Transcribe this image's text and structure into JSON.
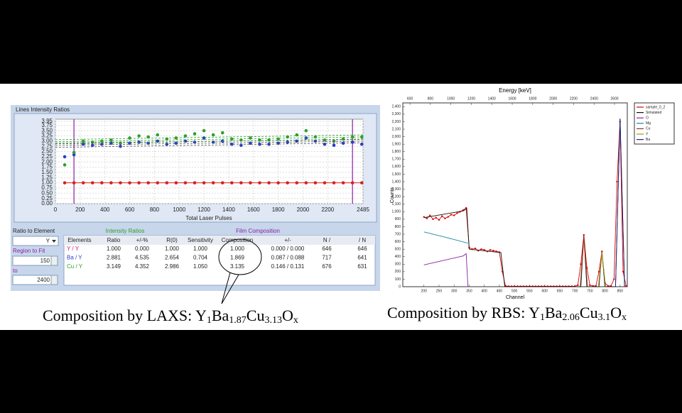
{
  "chart_data": [
    {
      "type": "scatter",
      "title": "Lines Intensity Ratios",
      "xlabel": "Total Laser Pulses",
      "xlim": [
        0,
        2485
      ],
      "ylim": [
        0,
        4.05
      ],
      "xticks": [
        0,
        200,
        400,
        600,
        800,
        1000,
        1200,
        1400,
        1600,
        1800,
        2000,
        2200,
        2485
      ],
      "yticks": [
        {
          "value": 0,
          "label": "0.00"
        },
        0.25,
        {
          "value": 0.5,
          "label": "0.50"
        },
        0.75,
        {
          "value": 1,
          "label": "1.00"
        },
        1.25,
        {
          "value": 1.5,
          "label": "1.50"
        },
        1.75,
        {
          "value": 2,
          "label": "2.00"
        },
        2.25,
        {
          "value": 2.5,
          "label": "2.50"
        },
        2.75,
        {
          "value": 3,
          "label": "3.00"
        },
        3.25,
        {
          "value": 3.5,
          "label": "3.50"
        },
        3.75,
        3.95
      ],
      "grid": true,
      "x": [
        75,
        150,
        225,
        300,
        375,
        450,
        525,
        600,
        675,
        750,
        825,
        900,
        975,
        1050,
        1125,
        1200,
        1275,
        1350,
        1425,
        1500,
        1575,
        1650,
        1725,
        1800,
        1875,
        1950,
        2025,
        2100,
        2175,
        2250,
        2325,
        2400,
        2475
      ],
      "series": [
        {
          "color": "#d62020",
          "mode": "lines+markers",
          "values": [
            1,
            1,
            1,
            1,
            1,
            1,
            1,
            1,
            1,
            1,
            1,
            1,
            1,
            1,
            1,
            1,
            1,
            1,
            1,
            1,
            1,
            1,
            1,
            1,
            1,
            1,
            1,
            1,
            1,
            1,
            1,
            1,
            1
          ]
        },
        {
          "color": "#2a3bd0",
          "mode": "markers",
          "values": [
            2.25,
            2.35,
            2.85,
            2.8,
            2.85,
            2.9,
            2.75,
            2.9,
            2.95,
            2.9,
            3.0,
            2.85,
            2.9,
            3.0,
            2.95,
            3.15,
            2.95,
            3.0,
            2.85,
            2.8,
            2.9,
            2.85,
            2.85,
            2.9,
            2.95,
            3.0,
            3.15,
            3.0,
            2.85,
            2.8,
            2.9,
            2.95,
            2.85
          ]
        },
        {
          "color": "#2ea02e",
          "mode": "markers",
          "values": [
            1.86,
            2.45,
            3.0,
            2.95,
            3.0,
            3.05,
            2.9,
            3.15,
            3.25,
            3.2,
            3.3,
            3.1,
            3.15,
            3.25,
            3.35,
            3.5,
            3.3,
            3.4,
            3.1,
            3.05,
            3.15,
            3.05,
            3.05,
            3.1,
            3.2,
            3.3,
            3.5,
            3.2,
            3.05,
            3.0,
            3.1,
            3.2,
            3.2
          ]
        },
        {
          "color": "#555555",
          "mode": "dashed",
          "x": [
            0,
            2485
          ],
          "values": [
            2.8,
            3.0
          ]
        },
        {
          "color": "#555555",
          "mode": "dashed",
          "x": [
            0,
            2485
          ],
          "values": [
            2.7,
            2.92
          ]
        },
        {
          "color": "#555555",
          "mode": "dashed",
          "x": [
            0,
            2485
          ],
          "values": [
            2.9,
            3.08
          ]
        },
        {
          "color": "#2ea02e",
          "mode": "dashed",
          "x": [
            0,
            2485
          ],
          "values": [
            2.97,
            3.2
          ]
        },
        {
          "color": "#2ea02e",
          "mode": "dashed",
          "x": [
            0,
            2485
          ],
          "values": [
            2.87,
            3.1
          ]
        },
        {
          "color": "#2ea02e",
          "mode": "dashed",
          "x": [
            0,
            2485
          ],
          "values": [
            3.07,
            3.3
          ]
        }
      ]
    },
    {
      "type": "line",
      "x2label": "Energy [keV]",
      "xlabel": "Channel",
      "ylabel": "Counts",
      "xlim": [
        130,
        874
      ],
      "xticks": [
        200,
        250,
        300,
        350,
        400,
        450,
        500,
        550,
        600,
        650,
        700,
        750,
        800,
        850
      ],
      "x2lim": [
        530,
        2725
      ],
      "x2ticks": [
        600,
        800,
        1000,
        1200,
        1400,
        1600,
        1800,
        2000,
        2200,
        2400,
        2600
      ],
      "ylim": [
        0,
        2450
      ],
      "yticks": [
        0,
        100,
        200,
        300,
        400,
        500,
        600,
        700,
        800,
        900,
        {
          "value": 1000,
          "label": "1,000"
        },
        {
          "value": 1100,
          "label": "1,100"
        },
        {
          "value": 1200,
          "label": "1,200"
        },
        {
          "value": 1300,
          "label": "1,300"
        },
        {
          "value": 1400,
          "label": "1,400"
        },
        {
          "value": 1500,
          "label": "1,500"
        },
        {
          "value": 1600,
          "label": "1,600"
        },
        {
          "value": 1700,
          "label": "1,700"
        },
        {
          "value": 1800,
          "label": "1,800"
        },
        {
          "value": 1900,
          "label": "1,900"
        },
        {
          "value": 2000,
          "label": "2,000"
        },
        {
          "value": 2100,
          "label": "2,100"
        },
        {
          "value": 2200,
          "label": "2,200"
        },
        {
          "value": 2300,
          "label": "2,300"
        },
        {
          "value": 2400,
          "label": "2,400"
        }
      ],
      "legend": "outside-right",
      "series": [
        {
          "name": "sample_0_2",
          "color": "#e00000",
          "markers": true,
          "x": [
            200,
            210,
            220,
            230,
            240,
            250,
            260,
            270,
            280,
            290,
            300,
            310,
            320,
            330,
            340,
            350,
            360,
            370,
            380,
            390,
            400,
            410,
            420,
            430,
            440,
            450,
            460,
            470,
            480,
            490,
            500,
            510,
            520,
            530,
            540,
            550,
            560,
            570,
            580,
            590,
            600,
            610,
            620,
            630,
            640,
            650,
            660,
            670,
            680,
            690,
            700,
            710,
            720,
            730,
            740,
            750,
            760,
            770,
            780,
            790,
            800,
            810,
            820,
            830,
            840,
            850,
            860,
            870
          ],
          "values": [
            930,
            910,
            950,
            900,
            920,
            890,
            940,
            910,
            930,
            960,
            950,
            980,
            1000,
            1020,
            1050,
            520,
            500,
            510,
            480,
            500,
            490,
            470,
            490,
            480,
            470,
            460,
            200,
            10,
            5,
            5,
            5,
            5,
            5,
            5,
            5,
            5,
            5,
            5,
            5,
            5,
            5,
            5,
            5,
            5,
            5,
            5,
            5,
            5,
            5,
            5,
            5,
            20,
            300,
            690,
            250,
            20,
            10,
            10,
            200,
            470,
            50,
            10,
            10,
            100,
            1400,
            2200,
            200,
            10
          ]
        },
        {
          "name": "Simulated",
          "color": "#111111",
          "markers": false,
          "x": [
            200,
            330,
            342,
            350,
            455,
            468,
            720,
            730,
            740,
            780,
            790,
            800,
            835,
            850,
            865
          ],
          "values": [
            920,
            1010,
            1040,
            500,
            455,
            0,
            0,
            680,
            0,
            0,
            460,
            0,
            0,
            2240,
            0
          ]
        },
        {
          "name": "O",
          "color": "#8a1fa8",
          "markers": false,
          "x": [
            200,
            330,
            340,
            346
          ],
          "values": [
            290,
            410,
            440,
            0
          ]
        },
        {
          "name": "Mg",
          "color": "#1b8a9a",
          "markers": false,
          "x": [
            200,
            270,
            346
          ],
          "values": [
            730,
            660,
            580
          ]
        },
        {
          "name": "Cu",
          "color": "#8b3a1a",
          "markers": false,
          "x": [
            718,
            730,
            742
          ],
          "values": [
            0,
            670,
            0
          ]
        },
        {
          "name": "Y",
          "color": "#9a9a10",
          "markers": false,
          "x": [
            778,
            790,
            802
          ],
          "values": [
            0,
            455,
            0
          ]
        },
        {
          "name": "Ba",
          "color": "#1a237e",
          "markers": false,
          "x": [
            835,
            850,
            865
          ],
          "values": [
            0,
            2240,
            0
          ]
        }
      ]
    }
  ],
  "controls": {
    "ratio_label": "Ratio to Element",
    "ratio_value": "Y",
    "region_label": "Region to Fit",
    "region_from": 150,
    "to_label": "to",
    "region_to": 2400
  },
  "table": {
    "group_headers": [
      "Intensity Ratios",
      "Film Composition"
    ],
    "columns": [
      "Elements",
      "Ratio",
      "+/-%",
      "R(0)",
      "Sensitivity",
      "Composition",
      "+/-",
      "N /",
      "/ N"
    ],
    "rows": [
      [
        "Y / Y",
        "1.000",
        "0.000",
        "1.000",
        "1.000",
        "1.000",
        "0.000 / 0.000",
        "646",
        "646"
      ],
      [
        "Ba / Y",
        "2.881",
        "4.535",
        "2.654",
        "0.704",
        "1.869",
        "0.087 / 0.088",
        "717",
        "641"
      ],
      [
        "Cu / Y",
        "3.149",
        "4.352",
        "2.986",
        "1.050",
        "3.135",
        "0.146 / 0.131",
        "676",
        "631"
      ]
    ]
  },
  "captions": {
    "laxs": {
      "text": "Composition by LAXS: ",
      "formula": [
        {
          "el": "Y",
          "sub": "1"
        },
        {
          "el": "Ba",
          "sub": "1.87"
        },
        {
          "el": "Cu",
          "sub": "3.13"
        },
        {
          "el": "O",
          "sub": "x"
        }
      ]
    },
    "rbs": {
      "text": "Composition by RBS: ",
      "formula": [
        {
          "el": "Y",
          "sub": "1"
        },
        {
          "el": "Ba",
          "sub": "2.06"
        },
        {
          "el": "Cu",
          "sub": "3.1"
        },
        {
          "el": "O",
          "sub": "x"
        }
      ]
    }
  }
}
